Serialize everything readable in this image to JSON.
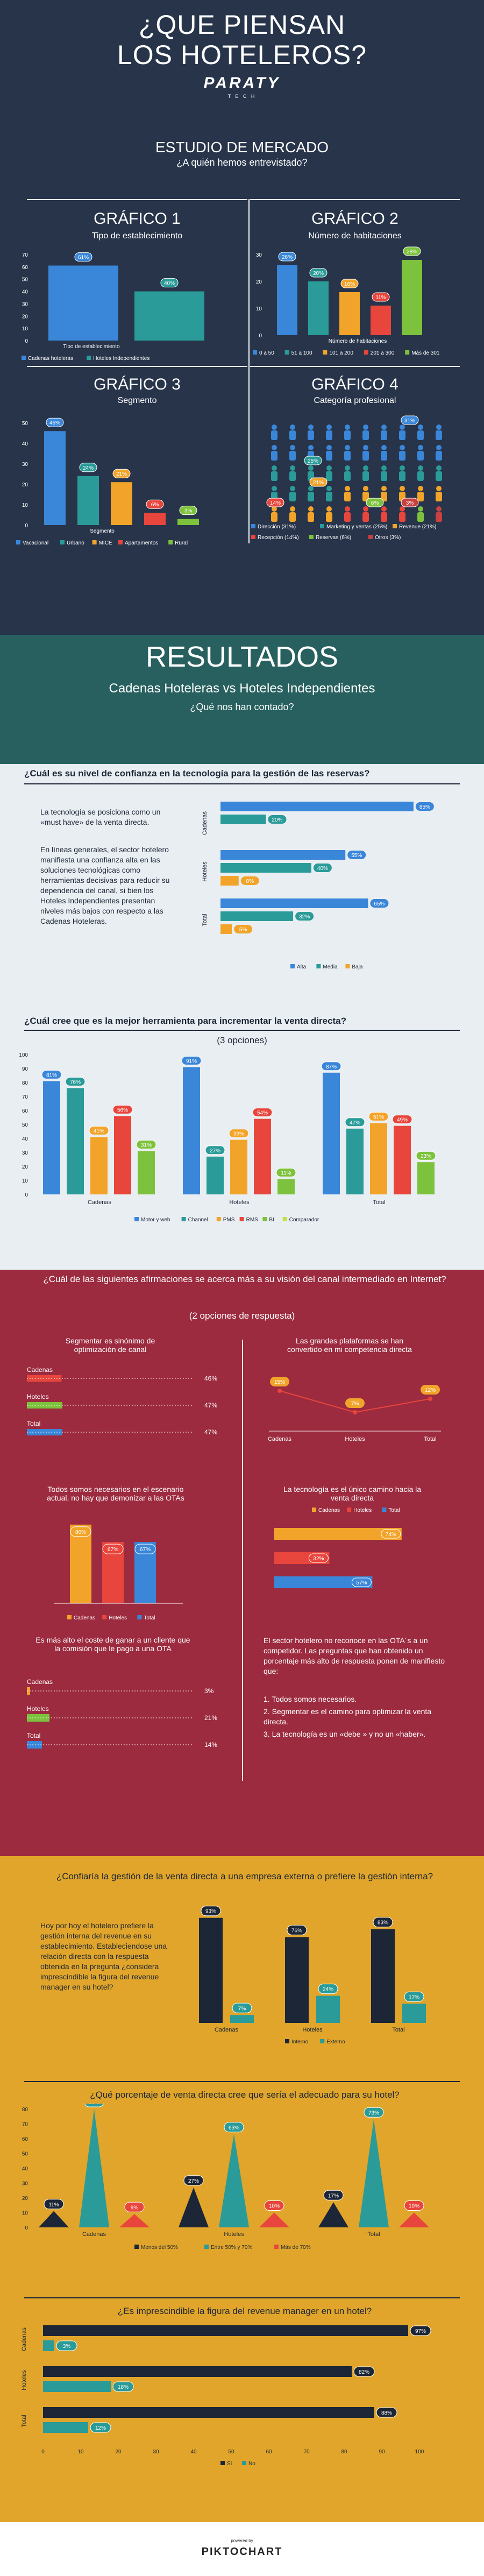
{
  "colors": {
    "navy": "#27344a",
    "blue": "#3a86d8",
    "teal": "#2a9b98",
    "orange": "#f2a42a",
    "red": "#e8453c",
    "green": "#7dc23c",
    "maroon": "#9c2b3f",
    "gold": "#e0a52a",
    "bluegray": "#2f5b80",
    "darkteal": "#27605f"
  },
  "header": {
    "title": "¿QUE PIENSAN LOS HOTELEROS?",
    "logo": "PARATY",
    "logo_sub": "T E C H"
  },
  "market": {
    "title": "ESTUDIO DE MERCADO",
    "subtitle": "¿A quién hemos entrevistado?"
  },
  "g1": {
    "heading": "GRÁFICO 1",
    "subtitle": "Tipo de establecimiento",
    "xlabel": "Tipo de establecimiento"
  },
  "g2": {
    "heading": "GRÁFICO 2",
    "subtitle": "Número de habitaciones",
    "xlabel": "Número de habitaciones"
  },
  "g3": {
    "heading": "GRÁFICO 3",
    "subtitle": "Segmento",
    "xlabel": "Segmento"
  },
  "g4": {
    "heading": "GRÁFICO 4",
    "subtitle": "Categoría profesional"
  },
  "results": {
    "title": "RESULTADOS",
    "subtitle": "Cadenas Hoteleras vs Hoteles Independientes",
    "question": "¿Qué nos han contado?"
  },
  "q1": {
    "title": "¿Cuál es su nivel de confianza en la tecnología para la gestión de las reservas?",
    "text1": "La tecnología se posiciona como un «must have» de la venta directa.",
    "text2": "En líneas generales, el sector hotelero manifiesta una confianza alta en las soluciones tecnológicas como herramientas decisivas para reducir su dependencia del canal, si bien los Hoteles Independientes presentan niveles más bajos con respecto a las Cadenas Hoteleras."
  },
  "q2": {
    "title": "¿Cuál cree que es la mejor herramienta para incrementar la venta directa?",
    "subtitle": "(3 opciones)"
  },
  "q3": {
    "title": "¿Cuál de las siguientes afirmaciones se acerca más a su visión del canal intermediado en Internet?",
    "subtitle": "(2 opciones de respuesta)",
    "p1_title": "Segmentar es sinónimo de optimización de canal",
    "p2_title": "Las grandes plataformas se han convertido en mi competencia directa",
    "p3_title": "Todos somos necesarios en el escenario actual, no hay que demonizar a las OTAs",
    "p4_title": "La tecnología es el único camino hacia la venta directa",
    "p5_title": "Es más alto el coste de ganar a un cliente que la comisión que le pago a una OTA",
    "p6_text1": "El sector hotelero no reconoce en las OTA´s a un competidor. Las preguntas que han obtenido un porcentaje más alto de respuesta ponen de manifiesto que:",
    "p6_list": [
      "1. Todos somos necesarios.",
      "2. Segmentar es el camino para optimizar la venta directa.",
      "3. La tecnología es un «debe » y no un «haber»."
    ]
  },
  "q4": {
    "title": "¿Confiaría la gestión de la venta directa a una empresa externa o prefiere la gestión interna?",
    "text": "Hoy por hoy el hotelero prefiere la gestión interna del revenue en su establecimiento. Estableciendose una relación directa con la respuesta obtenida en la pregunta ¿considera imprescindible la figura del revenue manager en su hotel?"
  },
  "q5": {
    "title": "¿Qué porcentaje de venta directa cree que sería el adecuado para su hotel?"
  },
  "q6": {
    "title": "¿Es imprescindible la figura del revenue manager en un hotel?"
  },
  "footer": {
    "powered": "powered by",
    "brand": "PIKTOCHART"
  },
  "chart_data": [
    {
      "id": "g1",
      "type": "bar",
      "categories": [
        "Cadenas hoteleras",
        "Hoteles Independientes"
      ],
      "values": [
        61,
        40
      ],
      "ylim": [
        0,
        70
      ],
      "ticks": [
        0,
        10,
        20,
        30,
        40,
        50,
        60,
        70
      ],
      "legend": "bottom",
      "xlabel": "Tipo de establecimiento",
      "labels": [
        "61%",
        "40%"
      ]
    },
    {
      "id": "g2",
      "type": "bar",
      "categories": [
        "0 a 50",
        "51 a 100",
        "101 a 200",
        "201 a 300",
        "Más de 301"
      ],
      "values": [
        26,
        20,
        16,
        11,
        28
      ],
      "ylim": [
        0,
        30
      ],
      "ticks": [
        0,
        10,
        20,
        30
      ],
      "legend": "bottom",
      "xlabel": "Número de habitaciones",
      "labels": [
        "26%",
        "20%",
        "16%",
        "11%",
        "28%"
      ]
    },
    {
      "id": "g3",
      "type": "bar",
      "categories": [
        "Vacacional",
        "Urbano",
        "MICE",
        "Apartamentos",
        "Rural"
      ],
      "values": [
        46,
        24,
        21,
        6,
        3
      ],
      "ylim": [
        0,
        50
      ],
      "ticks": [
        0,
        10,
        20,
        30,
        40,
        50
      ],
      "legend": "bottom",
      "xlabel": "Segmento",
      "labels": [
        "46%",
        "24%",
        "21%",
        "6%",
        "3%"
      ]
    },
    {
      "id": "g4",
      "type": "pictograph",
      "categories": [
        "Dirección (31%)",
        "Marketing y ventas (25%)",
        "Revenue (21%)",
        "Recepción (14%)",
        "Reservas (6%)",
        "Otros (3%)"
      ],
      "values": [
        31,
        25,
        21,
        14,
        6,
        3
      ],
      "labels": [
        "31%",
        "25%",
        "21%",
        "14%",
        "6%",
        "3%"
      ],
      "legend": "bottom"
    },
    {
      "id": "q1",
      "type": "bar",
      "orientation": "horizontal",
      "categories": [
        "Cadenas",
        "Hoteles",
        "Total"
      ],
      "series": [
        {
          "name": "Alta",
          "values": [
            85,
            55,
            65
          ]
        },
        {
          "name": "Media",
          "values": [
            20,
            40,
            32
          ]
        },
        {
          "name": "Baja",
          "values": [
            0,
            8,
            5
          ]
        }
      ],
      "labels": [
        [
          "85%",
          "20%",
          ""
        ],
        [
          "55%",
          "40%",
          "8%"
        ],
        [
          "65%",
          "32%",
          "5%"
        ]
      ],
      "xlim": [
        0,
        90
      ],
      "legend": "bottom"
    },
    {
      "id": "q2",
      "type": "bar",
      "categories": [
        "Cadenas",
        "Hoteles",
        "Total"
      ],
      "series": [
        {
          "name": "Motor y web",
          "values": [
            81,
            91,
            87
          ]
        },
        {
          "name": "Channel",
          "values": [
            76,
            27,
            47
          ]
        },
        {
          "name": "PMS",
          "values": [
            41,
            39,
            51
          ]
        },
        {
          "name": "RMS",
          "values": [
            56,
            54,
            49
          ]
        },
        {
          "name": "BI",
          "values": [
            31,
            11,
            23
          ]
        }
      ],
      "labels": [
        [
          "81%",
          "76%",
          "41%",
          "56%",
          "31%"
        ],
        [
          "91%",
          "27%",
          "39%",
          "54%",
          "11%"
        ],
        [
          "87%",
          "47%",
          "51%",
          "49%",
          "23%"
        ]
      ],
      "comparador": "Comparador",
      "ylim": [
        0,
        100
      ],
      "ticks": [
        0,
        10,
        20,
        30,
        40,
        50,
        60,
        70,
        80,
        90,
        100
      ],
      "legend": "bottom"
    },
    {
      "id": "q3a",
      "type": "bar",
      "orientation": "horizontal",
      "categories": [
        "Cadenas",
        "Hoteles",
        "Total"
      ],
      "values": [
        46,
        47,
        47
      ],
      "labels": [
        "46%",
        "47%",
        "47%"
      ]
    },
    {
      "id": "q3b",
      "type": "line",
      "categories": [
        "Cadenas",
        "Hoteles",
        "Total"
      ],
      "values": [
        15,
        7,
        12
      ],
      "labels": [
        "15%",
        "7%",
        "12%"
      ]
    },
    {
      "id": "q3c",
      "type": "bar",
      "categories": [
        "Cadenas",
        "Hoteles",
        "Total"
      ],
      "values": [
        86,
        67,
        67
      ],
      "labels": [
        "86%",
        "67%",
        "67%"
      ],
      "legend": "bottom"
    },
    {
      "id": "q3d",
      "type": "bar",
      "orientation": "horizontal",
      "categories": [
        "Cadenas",
        "Hoteles",
        "Total"
      ],
      "values": [
        74,
        32,
        57
      ],
      "labels": [
        "74%",
        "32%",
        "57%"
      ],
      "legend": "top"
    },
    {
      "id": "q3e",
      "type": "bar",
      "orientation": "horizontal",
      "categories": [
        "Cadenas",
        "Hoteles",
        "Total"
      ],
      "values": [
        3,
        21,
        14
      ],
      "labels": [
        "3%",
        "21%",
        "14%"
      ]
    },
    {
      "id": "q4",
      "type": "bar",
      "categories": [
        "Cadenas",
        "Hoteles",
        "Total"
      ],
      "series": [
        {
          "name": "Interno",
          "values": [
            93,
            76,
            83
          ]
        },
        {
          "name": "Externo",
          "values": [
            7,
            24,
            17
          ]
        }
      ],
      "labels": [
        [
          "93%",
          "76%",
          "83%"
        ],
        [
          "7%",
          "24%",
          "17%"
        ]
      ],
      "ylim": [
        0,
        100
      ],
      "legend": "bottom"
    },
    {
      "id": "q5",
      "type": "bar",
      "style": "triangle",
      "categories": [
        "Cadenas",
        "Hoteles",
        "Total"
      ],
      "series": [
        {
          "name": "Menos del 50%",
          "values": [
            11,
            27,
            17
          ]
        },
        {
          "name": "Entre 50% y 70%",
          "values": [
            80,
            63,
            73
          ]
        },
        {
          "name": "Más de 70%",
          "values": [
            9,
            10,
            10
          ]
        }
      ],
      "labels": [
        [
          "11%",
          "27%",
          "17%"
        ],
        [
          "80%",
          "63%",
          "73%"
        ],
        [
          "9%",
          "10%",
          "10%"
        ]
      ],
      "ylim": [
        0,
        80
      ],
      "ticks": [
        0,
        10,
        20,
        30,
        40,
        50,
        60,
        70,
        80
      ],
      "legend": "bottom"
    },
    {
      "id": "q6",
      "type": "bar",
      "orientation": "horizontal",
      "categories": [
        "Cadenas",
        "Hoteles",
        "Total"
      ],
      "series": [
        {
          "name": "Sí",
          "values": [
            97,
            82,
            88
          ]
        },
        {
          "name": "No",
          "values": [
            3,
            18,
            12
          ]
        }
      ],
      "labels": [
        [
          "97%",
          "82%",
          "88%"
        ],
        [
          "3%",
          "18%",
          "12%"
        ]
      ],
      "xlim": [
        0,
        100
      ],
      "ticks": [
        0,
        10,
        20,
        30,
        40,
        50,
        60,
        70,
        80,
        90,
        100
      ],
      "legend": "bottom"
    }
  ]
}
